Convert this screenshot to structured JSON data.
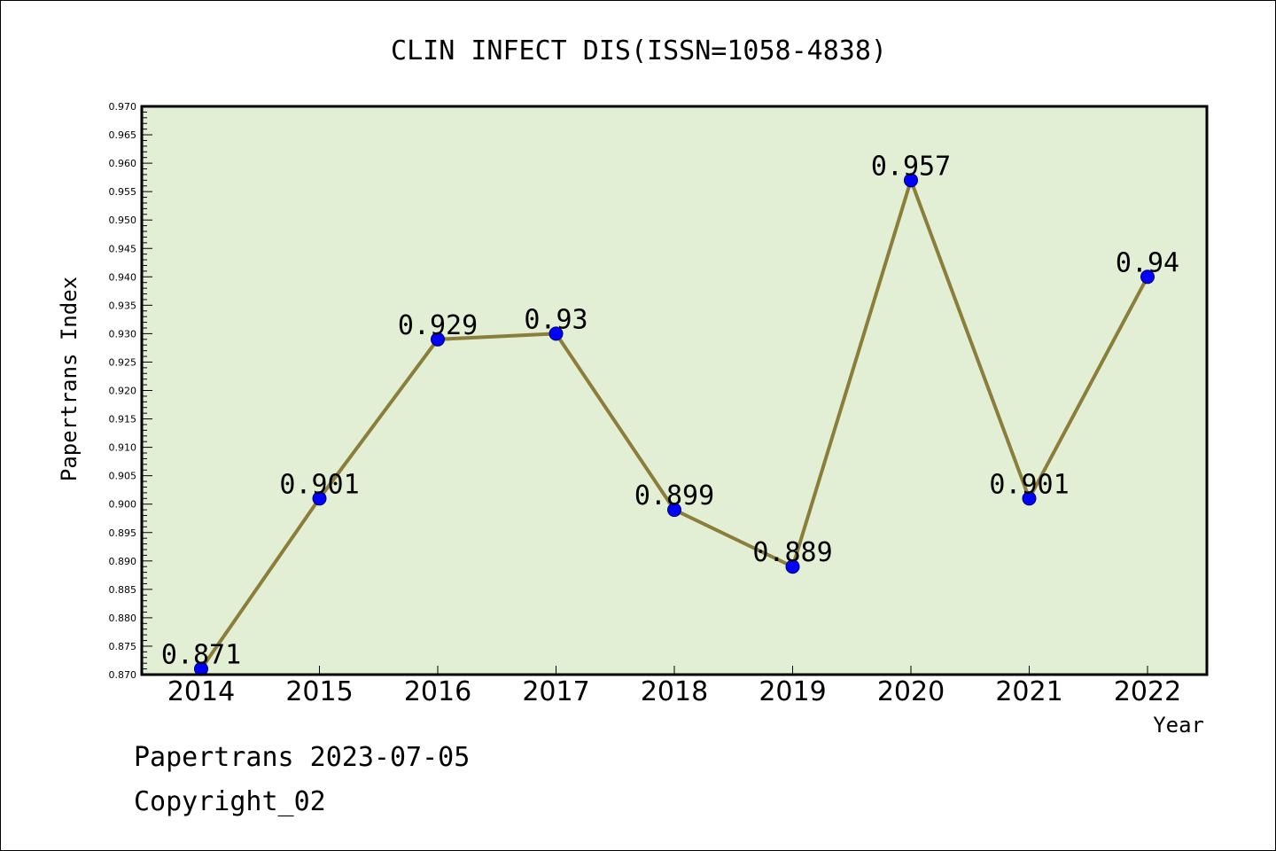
{
  "chart_data": {
    "type": "line",
    "title": "CLIN INFECT DIS(ISSN=1058-4838)",
    "xlabel": "Year",
    "ylabel": "Papertrans Index",
    "categories": [
      "2014",
      "2015",
      "2016",
      "2017",
      "2018",
      "2019",
      "2020",
      "2021",
      "2022"
    ],
    "series": [
      {
        "values": [
          0.871,
          0.901,
          0.929,
          0.93,
          0.899,
          0.889,
          0.957,
          0.901,
          0.94
        ]
      }
    ],
    "data_labels": [
      "0.871",
      "0.901",
      "0.929",
      "0.93",
      "0.899",
      "0.889",
      "0.957",
      "0.901",
      "0.94"
    ],
    "ylim": [
      0.87,
      0.97
    ],
    "yticks": [
      "0.870",
      "0.875",
      "0.880",
      "0.885",
      "0.890",
      "0.895",
      "0.900",
      "0.905",
      "0.910",
      "0.915",
      "0.920",
      "0.925",
      "0.930",
      "0.935",
      "0.940",
      "0.945",
      "0.950",
      "0.955",
      "0.960",
      "0.965",
      "0.970"
    ],
    "grid": false,
    "legend": "none",
    "colors": {
      "plot_background": "#e2efd5",
      "line": "#8b7d3a",
      "marker": "#0000ff"
    }
  },
  "footer": {
    "line1": "Papertrans 2023-07-05",
    "line2": "Copyright_02"
  }
}
